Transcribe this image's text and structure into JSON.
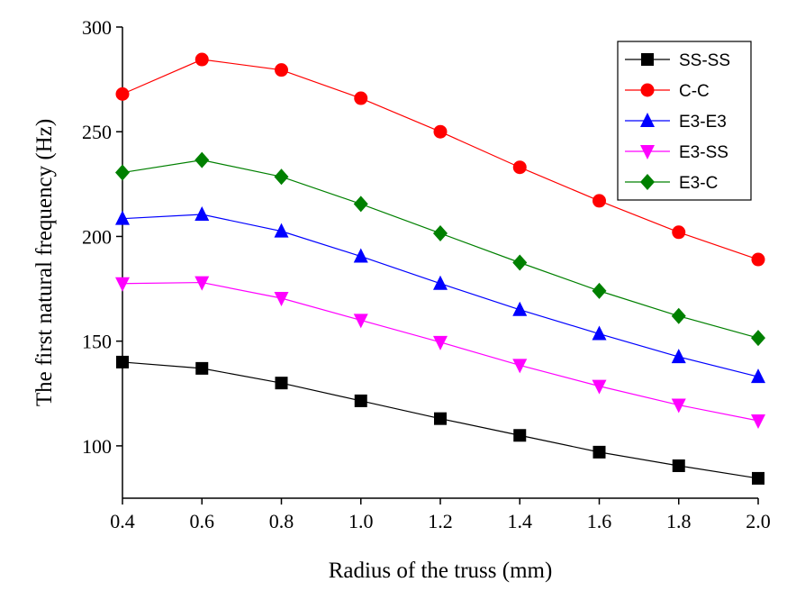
{
  "chart_data": {
    "type": "line",
    "title": "",
    "xlabel": "Radius of the truss (mm)",
    "ylabel": "The first natural frequency (Hz)",
    "xlim": [
      0.4,
      2.0
    ],
    "ylim": [
      75,
      300
    ],
    "xticks": [
      0.4,
      0.6,
      0.8,
      1.0,
      1.2,
      1.4,
      1.6,
      1.8,
      2.0
    ],
    "xtick_labels": [
      "0.4",
      "0.6",
      "0.8",
      "1.0",
      "1.2",
      "1.4",
      "1.6",
      "1.8",
      "2.0"
    ],
    "yticks": [
      100,
      150,
      200,
      250,
      300
    ],
    "ytick_labels": [
      "100",
      "150",
      "200",
      "250",
      "300"
    ],
    "grid": false,
    "legend_position": "top-right",
    "x": [
      0.4,
      0.6,
      0.8,
      1.0,
      1.2,
      1.4,
      1.6,
      1.8,
      2.0
    ],
    "series": [
      {
        "name": "SS-SS",
        "color": "#000000",
        "marker": "square",
        "values": [
          140,
          137,
          130,
          121.5,
          113,
          105,
          97,
          90.5,
          84.5
        ]
      },
      {
        "name": "C-C",
        "color": "#ff0000",
        "marker": "circle",
        "values": [
          268,
          284.5,
          279.5,
          266,
          250,
          233,
          217,
          202,
          189
        ]
      },
      {
        "name": "E3-E3",
        "color": "#0000ff",
        "marker": "triangle-up",
        "values": [
          208.5,
          210.5,
          202.5,
          190.5,
          177.5,
          165,
          153.5,
          142.5,
          133
        ]
      },
      {
        "name": "E3-SS",
        "color": "#ff00ff",
        "marker": "triangle-down",
        "values": [
          177.5,
          178,
          170.5,
          160,
          149.5,
          138.5,
          128.5,
          119.5,
          112
        ]
      },
      {
        "name": "E3-C",
        "color": "#008000",
        "marker": "diamond",
        "values": [
          230.5,
          236.5,
          228.5,
          215.5,
          201.5,
          187.5,
          174,
          162,
          151.5
        ]
      }
    ]
  }
}
